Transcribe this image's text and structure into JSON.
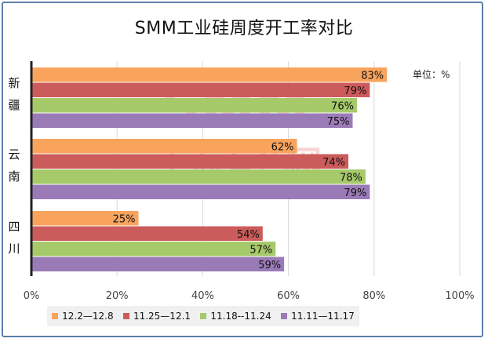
{
  "chart_data": {
    "type": "bar",
    "orientation": "horizontal",
    "title": "SMM工业硅周度开工率对比",
    "unit_label": "单位：%",
    "categories": [
      "新疆",
      "云南",
      "四川"
    ],
    "series": [
      {
        "name": "12.2—12.8",
        "color": "#f9a45d",
        "values": [
          83,
          62,
          25
        ],
        "labels": [
          "83%",
          "62%",
          "25%"
        ]
      },
      {
        "name": "11.25—12.1",
        "color": "#cc5b5b",
        "values": [
          79,
          74,
          54
        ],
        "labels": [
          "79%",
          "74%",
          "54%"
        ]
      },
      {
        "name": "11.18--11.24",
        "color": "#a6c96a",
        "values": [
          76,
          78,
          57
        ],
        "labels": [
          "76%",
          "78%",
          "57%"
        ]
      },
      {
        "name": "11.11—11.17",
        "color": "#9b7bb7",
        "values": [
          75,
          79,
          59
        ],
        "labels": [
          "75%",
          "79%",
          "59%"
        ]
      }
    ],
    "x_ticks": [
      "0%",
      "20%",
      "40%",
      "60%",
      "80%",
      "100%"
    ],
    "xlim": [
      0,
      100
    ],
    "grid": true,
    "legend_position": "bottom",
    "watermark": "SMM 上海有色网"
  }
}
